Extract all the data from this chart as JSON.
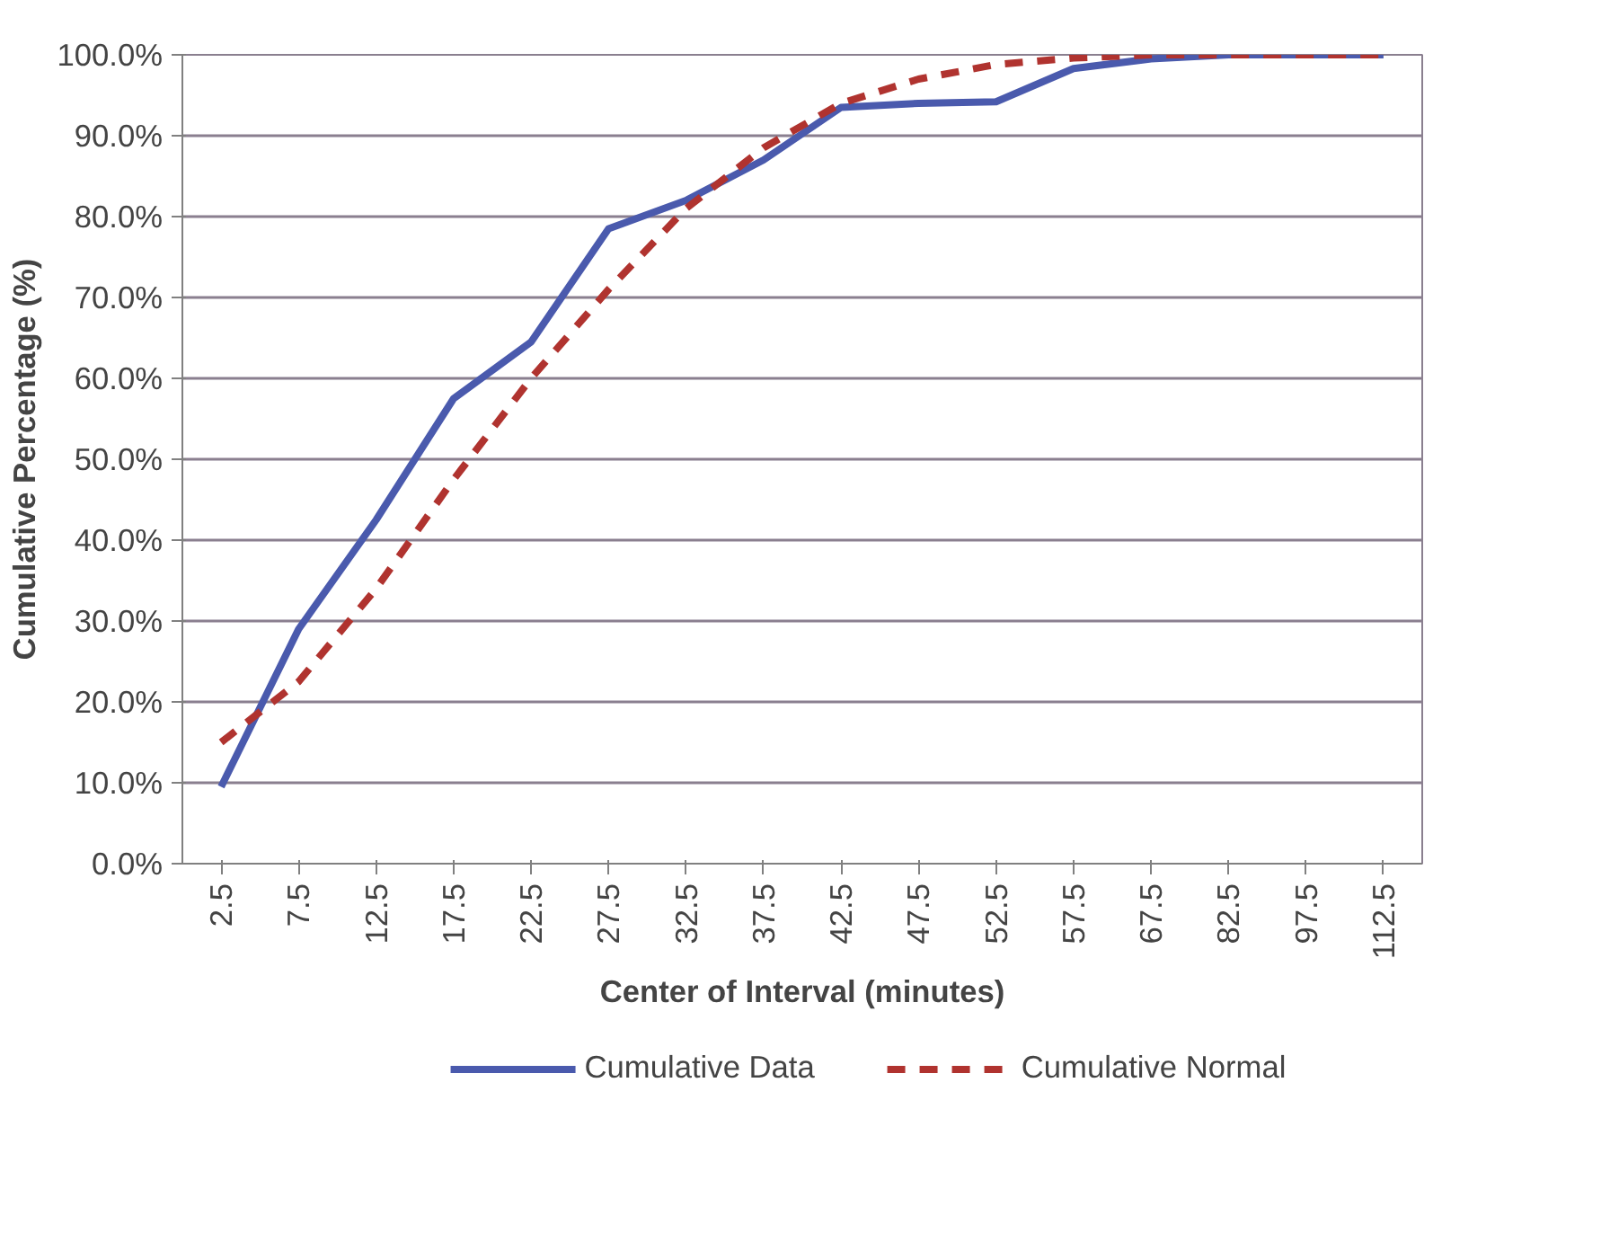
{
  "chart_data": {
    "type": "line",
    "xlabel": "Center of Interval (minutes)",
    "ylabel": "Cumulative Percentage (%)",
    "categories": [
      "2.5",
      "7.5",
      "12.5",
      "17.5",
      "22.5",
      "27.5",
      "32.5",
      "37.5",
      "42.5",
      "47.5",
      "52.5",
      "57.5",
      "67.5",
      "82.5",
      "97.5",
      "112.5"
    ],
    "series": [
      {
        "name": "Cumulative Data",
        "color": "#4a5aad",
        "line_style": "solid",
        "values": [
          9.5,
          29,
          42.5,
          57.5,
          64.5,
          78.5,
          82,
          87,
          93.5,
          94,
          94.2,
          98.3,
          99.5,
          100,
          100,
          100
        ]
      },
      {
        "name": "Cumulative Normal",
        "color": "#b0332f",
        "line_style": "dashed",
        "values": [
          15,
          22.5,
          34,
          47.5,
          60,
          71,
          81,
          88.5,
          94,
          97,
          98.8,
          99.6,
          100,
          100,
          100,
          100
        ]
      }
    ],
    "ylim": [
      0,
      100
    ],
    "yticks": [
      {
        "value": 0,
        "label": "0.0%"
      },
      {
        "value": 10,
        "label": "10.0%"
      },
      {
        "value": 20,
        "label": "20.0%"
      },
      {
        "value": 30,
        "label": "30.0%"
      },
      {
        "value": 40,
        "label": "40.0%"
      },
      {
        "value": 50,
        "label": "50.0%"
      },
      {
        "value": 60,
        "label": "60.0%"
      },
      {
        "value": 70,
        "label": "70.0%"
      },
      {
        "value": 80,
        "label": "80.0%"
      },
      {
        "value": 90,
        "label": "90.0%"
      },
      {
        "value": 100,
        "label": "100.0%"
      }
    ],
    "grid": "y",
    "legend": "bottom",
    "marker": "none"
  }
}
